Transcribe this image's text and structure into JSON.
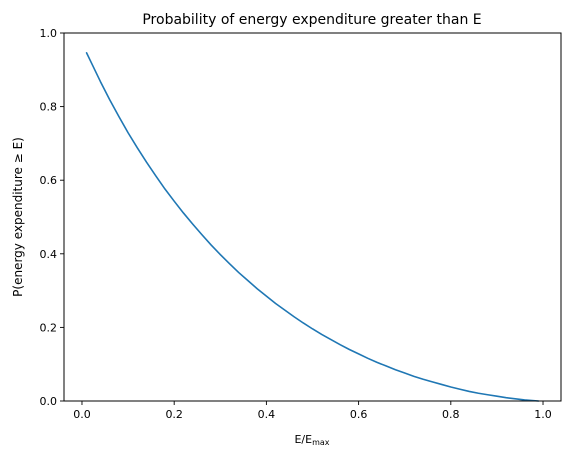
{
  "chart_data": {
    "type": "line",
    "title": "Probability of energy expenditure greater than E",
    "xlabel": "E/E",
    "xlabel_subscript": "max",
    "ylabel": "P(energy expenditure ≥ E)",
    "xlim": [
      -0.039,
      1.039
    ],
    "ylim": [
      0,
      1
    ],
    "xticks": [
      0.0,
      0.2,
      0.4,
      0.6,
      0.8,
      1.0
    ],
    "xtick_labels": [
      "0.0",
      "0.2",
      "0.4",
      "0.6",
      "0.8",
      "1.0"
    ],
    "yticks": [
      0.0,
      0.2,
      0.4,
      0.6,
      0.8,
      1.0
    ],
    "ytick_labels": [
      "0.0",
      "0.2",
      "0.4",
      "0.6",
      "0.8",
      "1.0"
    ],
    "grid": false,
    "legend": false,
    "series": [
      {
        "color": "#1f77b4",
        "x": [
          0.01,
          0.02,
          0.04,
          0.06,
          0.08,
          0.1,
          0.12,
          0.14,
          0.16,
          0.18,
          0.2,
          0.22,
          0.24,
          0.26,
          0.28,
          0.3,
          0.32,
          0.34,
          0.36,
          0.38,
          0.4,
          0.42,
          0.44,
          0.46,
          0.48,
          0.5,
          0.52,
          0.54,
          0.56,
          0.58,
          0.6,
          0.62,
          0.64,
          0.66,
          0.68,
          0.7,
          0.72,
          0.74,
          0.76,
          0.78,
          0.8,
          0.82,
          0.84,
          0.86,
          0.88,
          0.9,
          0.92,
          0.94,
          0.96,
          0.98,
          0.99
        ],
        "y": [
          0.946,
          0.92,
          0.868,
          0.819,
          0.773,
          0.729,
          0.688,
          0.649,
          0.612,
          0.576,
          0.543,
          0.511,
          0.481,
          0.452,
          0.424,
          0.398,
          0.373,
          0.349,
          0.327,
          0.305,
          0.285,
          0.265,
          0.247,
          0.229,
          0.212,
          0.196,
          0.181,
          0.167,
          0.153,
          0.14,
          0.128,
          0.116,
          0.105,
          0.095,
          0.085,
          0.076,
          0.067,
          0.059,
          0.052,
          0.045,
          0.038,
          0.032,
          0.026,
          0.021,
          0.017,
          0.013,
          0.009,
          0.006,
          0.003,
          0.001,
          0.0
        ]
      }
    ]
  }
}
